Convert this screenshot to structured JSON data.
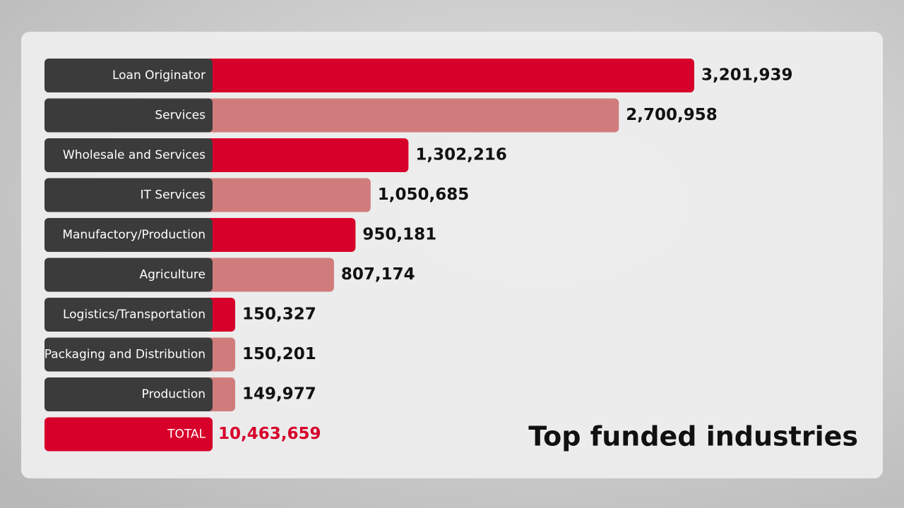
{
  "chart_data": {
    "type": "bar",
    "orientation": "horizontal",
    "title": "Top funded industries",
    "categories": [
      "Loan Originator",
      "Services",
      "Wholesale and Services",
      "IT Services",
      "Manufactory/Production",
      "Agriculture",
      "Logistics/Transportation",
      "Packaging and Distribution",
      "Production"
    ],
    "values": [
      3201939,
      2700958,
      1302216,
      1050685,
      950181,
      807174,
      150327,
      150201,
      149977
    ],
    "value_labels": [
      "3,201,939",
      "2,700,958",
      "1,302,216",
      "1,050,685",
      "950,181",
      "807,174",
      "150,327",
      "150,201",
      "149,977"
    ],
    "colors": [
      "#d7002a",
      "#d17c7c",
      "#d7002a",
      "#d17c7c",
      "#d7002a",
      "#d17c7c",
      "#d7002a",
      "#d17c7c",
      "#d17c7c"
    ],
    "total": {
      "label": "TOTAL",
      "value": 10463659,
      "value_label": "10,463,659",
      "color": "#d7002a"
    }
  }
}
